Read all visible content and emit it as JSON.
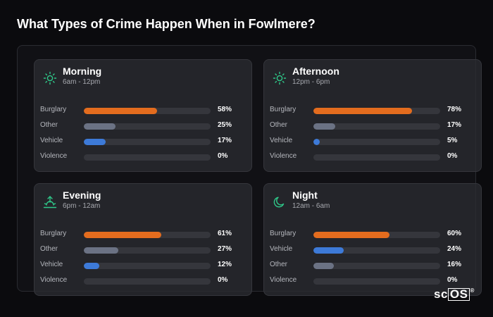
{
  "title": "What Types of Crime Happen When in Fowlmere?",
  "logo": {
    "text_a": "sc",
    "text_b": "OS",
    "reg": "®"
  },
  "colors": {
    "burglary": "#e36c1e",
    "other": "#6b7284",
    "vehicle": "#3d7ad8",
    "icon": "#2fc98a"
  },
  "cards": [
    {
      "name": "Morning",
      "time": "6am - 12pm",
      "icon": "sun-icon",
      "rows": [
        {
          "label": "Burglary",
          "value": 58,
          "pct": "58%",
          "color": "orange"
        },
        {
          "label": "Other",
          "value": 25,
          "pct": "25%",
          "color": "gray"
        },
        {
          "label": "Vehicle",
          "value": 17,
          "pct": "17%",
          "color": "blue"
        },
        {
          "label": "Violence",
          "value": 0,
          "pct": "0%",
          "color": "gray"
        }
      ]
    },
    {
      "name": "Afternoon",
      "time": "12pm - 6pm",
      "icon": "sun-icon",
      "rows": [
        {
          "label": "Burglary",
          "value": 78,
          "pct": "78%",
          "color": "orange"
        },
        {
          "label": "Other",
          "value": 17,
          "pct": "17%",
          "color": "gray"
        },
        {
          "label": "Vehicle",
          "value": 5,
          "pct": "5%",
          "color": "blue"
        },
        {
          "label": "Violence",
          "value": 0,
          "pct": "0%",
          "color": "gray"
        }
      ]
    },
    {
      "name": "Evening",
      "time": "6pm - 12am",
      "icon": "sunset-icon",
      "rows": [
        {
          "label": "Burglary",
          "value": 61,
          "pct": "61%",
          "color": "orange"
        },
        {
          "label": "Other",
          "value": 27,
          "pct": "27%",
          "color": "gray"
        },
        {
          "label": "Vehicle",
          "value": 12,
          "pct": "12%",
          "color": "blue"
        },
        {
          "label": "Violence",
          "value": 0,
          "pct": "0%",
          "color": "gray"
        }
      ]
    },
    {
      "name": "Night",
      "time": "12am - 6am",
      "icon": "moon-icon",
      "rows": [
        {
          "label": "Burglary",
          "value": 60,
          "pct": "60%",
          "color": "orange"
        },
        {
          "label": "Vehicle",
          "value": 24,
          "pct": "24%",
          "color": "blue"
        },
        {
          "label": "Other",
          "value": 16,
          "pct": "16%",
          "color": "gray"
        },
        {
          "label": "Violence",
          "value": 0,
          "pct": "0%",
          "color": "gray"
        }
      ]
    }
  ]
}
